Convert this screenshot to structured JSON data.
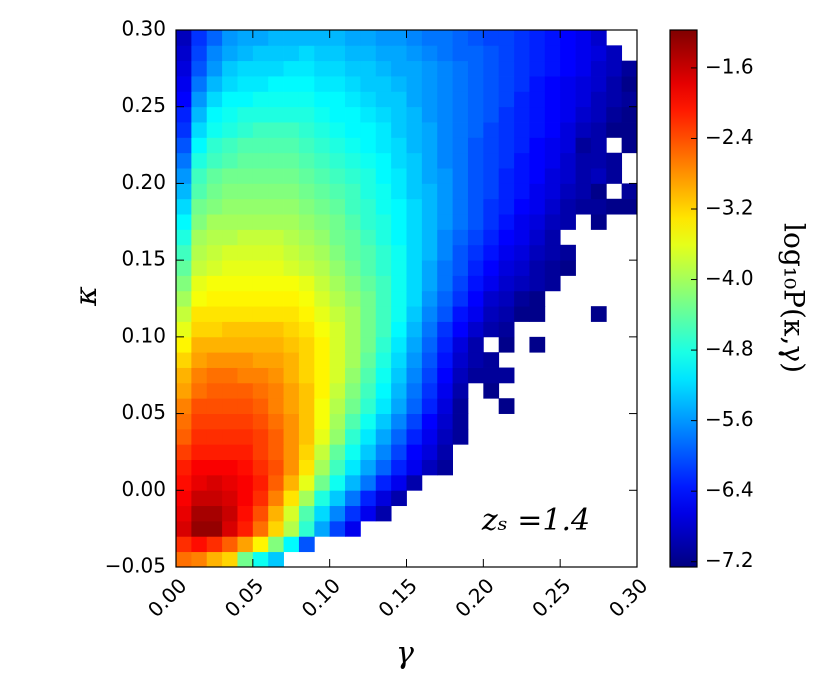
{
  "chart_data": {
    "type": "heatmap",
    "xlabel": "γ",
    "ylabel": "κ",
    "colorbar_label": "log₁₀P(κ,γ)",
    "annotation": "zₛ =1.4",
    "colormap": "jet",
    "xlim": [
      0,
      0.3
    ],
    "ylim": [
      -0.05,
      0.3
    ],
    "clim": [
      -7.26,
      -1.17
    ],
    "xticks": [
      {
        "value": 0,
        "label": "0.00"
      },
      {
        "value": 0.05,
        "label": "0.05"
      },
      {
        "value": 0.1,
        "label": "0.10"
      },
      {
        "value": 0.15,
        "label": "0.15"
      },
      {
        "value": 0.2,
        "label": "0.20"
      },
      {
        "value": 0.25,
        "label": "0.25"
      },
      {
        "value": 0.3,
        "label": "0.30"
      }
    ],
    "yticks": [
      {
        "value": -0.05,
        "label": "−0.05"
      },
      {
        "value": 0,
        "label": "0.00"
      },
      {
        "value": 0.05,
        "label": "0.05"
      },
      {
        "value": 0.1,
        "label": "0.10"
      },
      {
        "value": 0.15,
        "label": "0.15"
      },
      {
        "value": 0.2,
        "label": "0.20"
      },
      {
        "value": 0.25,
        "label": "0.25"
      },
      {
        "value": 0.3,
        "label": "0.30"
      }
    ],
    "cticks": [
      {
        "value": -1.6,
        "label": "−1.6"
      },
      {
        "value": -2.4,
        "label": "−2.4"
      },
      {
        "value": -3.2,
        "label": "−3.2"
      },
      {
        "value": -4.0,
        "label": "−4.0"
      },
      {
        "value": -4.8,
        "label": "−4.8"
      },
      {
        "value": -5.6,
        "label": "−5.6"
      },
      {
        "value": -6.4,
        "label": "−6.4"
      },
      {
        "value": -7.2,
        "label": "−7.2"
      }
    ],
    "x_edges": [
      0,
      0.01,
      0.02,
      0.03,
      0.04,
      0.05,
      0.06,
      0.07,
      0.08,
      0.09,
      0.1,
      0.11,
      0.12,
      0.13,
      0.14,
      0.15,
      0.16,
      0.17,
      0.18,
      0.19,
      0.2,
      0.21,
      0.22,
      0.23,
      0.24,
      0.25,
      0.26,
      0.27,
      0.28,
      0.29,
      0.3
    ],
    "y_edges": [
      -0.05,
      -0.04,
      -0.03,
      -0.02,
      -0.01,
      0,
      0.01,
      0.02,
      0.03,
      0.04,
      0.05,
      0.06,
      0.07,
      0.08,
      0.09,
      0.1,
      0.11,
      0.12,
      0.13,
      0.14,
      0.15,
      0.16,
      0.17,
      0.18,
      0.19,
      0.2,
      0.21,
      0.22,
      0.23,
      0.24,
      0.25,
      0.26,
      0.27,
      0.28,
      0.29,
      0.3
    ],
    "z": [
      [
        -2.6,
        -2.7,
        -3.0,
        -3.2,
        -4.3,
        -4.9,
        -5.3,
        null,
        null,
        null,
        null,
        null,
        null,
        null,
        null,
        null,
        null,
        null,
        null,
        null,
        null,
        null,
        null,
        null,
        null,
        null,
        null,
        null,
        null,
        null
      ],
      [
        -2.2,
        -2.0,
        -2.2,
        -2.5,
        -2.9,
        -3.4,
        -4.2,
        -5.0,
        -6.0,
        null,
        null,
        null,
        null,
        null,
        null,
        null,
        null,
        null,
        null,
        null,
        null,
        null,
        null,
        null,
        null,
        null,
        null,
        null,
        null,
        null
      ],
      [
        -1.7,
        -1.3,
        -1.3,
        -1.7,
        -2.1,
        -2.6,
        -3.2,
        -3.9,
        -4.7,
        -5.5,
        -6.1,
        -6.6,
        null,
        null,
        null,
        null,
        null,
        null,
        null,
        null,
        null,
        null,
        null,
        null,
        null,
        null,
        null,
        null,
        null,
        null
      ],
      [
        -1.8,
        -1.4,
        -1.4,
        -1.6,
        -2.0,
        -2.4,
        -3.0,
        -3.7,
        -4.5,
        -5.2,
        -5.7,
        -6.2,
        -6.6,
        -7.0,
        null,
        null,
        null,
        null,
        null,
        null,
        null,
        null,
        null,
        null,
        null,
        null,
        null,
        null,
        null,
        null
      ],
      [
        -1.9,
        -1.6,
        -1.6,
        -1.7,
        -1.9,
        -2.2,
        -2.7,
        -3.3,
        -4.0,
        -4.8,
        -5.3,
        -5.8,
        -6.3,
        -6.7,
        -7.0,
        null,
        null,
        null,
        null,
        null,
        null,
        null,
        null,
        null,
        null,
        null,
        null,
        null,
        null,
        null
      ],
      [
        -2.0,
        -1.8,
        -1.7,
        -1.8,
        -1.9,
        -2.1,
        -2.5,
        -3.0,
        -3.6,
        -4.3,
        -4.9,
        -5.4,
        -5.8,
        -6.3,
        -6.6,
        -7.0,
        null,
        null,
        null,
        null,
        null,
        null,
        null,
        null,
        null,
        null,
        null,
        null,
        null,
        null
      ],
      [
        -2.1,
        -1.9,
        -1.9,
        -1.9,
        -2.0,
        -2.2,
        -2.4,
        -2.8,
        -3.3,
        -4.0,
        -4.6,
        -5.1,
        -5.5,
        -5.9,
        -6.3,
        -6.6,
        -6.9,
        -7.1,
        null,
        null,
        null,
        null,
        null,
        null,
        null,
        null,
        null,
        null,
        null,
        null
      ],
      [
        -2.3,
        -2.1,
        -2.1,
        -2.1,
        -2.1,
        -2.3,
        -2.5,
        -2.8,
        -3.2,
        -3.8,
        -4.4,
        -4.9,
        -5.3,
        -5.7,
        -6.1,
        -6.5,
        -6.7,
        -7.0,
        null,
        null,
        null,
        null,
        null,
        null,
        null,
        null,
        null,
        null,
        null,
        null
      ],
      [
        -2.5,
        -2.2,
        -2.2,
        -2.2,
        -2.2,
        -2.3,
        -2.5,
        -2.8,
        -3.1,
        -3.6,
        -4.1,
        -4.7,
        -5.1,
        -5.5,
        -5.9,
        -6.3,
        -6.6,
        -6.9,
        -7.1,
        null,
        null,
        null,
        null,
        null,
        null,
        null,
        null,
        null,
        null,
        null
      ],
      [
        -2.6,
        -2.3,
        -2.3,
        -2.3,
        -2.3,
        -2.4,
        -2.6,
        -2.8,
        -3.1,
        -3.5,
        -4.0,
        -4.5,
        -4.9,
        -5.3,
        -5.7,
        -6.1,
        -6.5,
        -6.8,
        -7.1,
        null,
        null,
        null,
        null,
        null,
        null,
        null,
        null,
        null,
        null,
        null
      ],
      [
        -2.7,
        -2.4,
        -2.4,
        -2.4,
        -2.4,
        -2.5,
        -2.7,
        -2.9,
        -3.1,
        -3.5,
        -3.9,
        -4.3,
        -4.7,
        -5.1,
        -5.5,
        -5.9,
        -6.3,
        -6.7,
        -7.1,
        null,
        null,
        -7.2,
        null,
        null,
        null,
        null,
        null,
        null,
        null,
        null
      ],
      [
        -2.9,
        -2.6,
        -2.5,
        -2.5,
        -2.5,
        -2.6,
        -2.7,
        -2.9,
        -3.1,
        -3.4,
        -3.8,
        -4.2,
        -4.6,
        -5.0,
        -5.4,
        -5.8,
        -6.2,
        -6.6,
        -7.0,
        null,
        -7.2,
        null,
        null,
        null,
        null,
        null,
        null,
        null,
        null,
        null
      ],
      [
        -3.0,
        -2.7,
        -2.6,
        -2.6,
        -2.7,
        -2.7,
        -2.8,
        -3.0,
        -3.2,
        -3.4,
        -3.7,
        -4.1,
        -4.5,
        -4.9,
        -5.3,
        -5.7,
        -6.1,
        -6.5,
        -6.9,
        -7.1,
        -7.1,
        -7.1,
        null,
        null,
        null,
        null,
        null,
        null,
        null,
        null
      ],
      [
        -3.2,
        -2.9,
        -2.8,
        -2.8,
        -2.8,
        -2.9,
        -2.9,
        -3.0,
        -3.2,
        -3.4,
        -3.7,
        -4.0,
        -4.4,
        -4.8,
        -5.2,
        -5.6,
        -6.0,
        -6.4,
        -6.8,
        -7.0,
        -7.1,
        null,
        null,
        null,
        null,
        null,
        null,
        null,
        null,
        null
      ],
      [
        -3.4,
        -3.0,
        -3.0,
        -3.0,
        -3.0,
        -3.0,
        -3.0,
        -3.1,
        -3.2,
        -3.4,
        -3.7,
        -4.0,
        -4.3,
        -4.7,
        -5.1,
        -5.5,
        -5.9,
        -6.3,
        -6.7,
        -7.0,
        null,
        -7.2,
        null,
        -7.2,
        null,
        null,
        null,
        null,
        null,
        null
      ],
      [
        -3.6,
        -3.2,
        -3.2,
        -3.1,
        -3.1,
        -3.1,
        -3.1,
        -3.2,
        -3.3,
        -3.5,
        -3.7,
        -4.0,
        -4.3,
        -4.6,
        -5.0,
        -5.4,
        -5.8,
        -6.2,
        -6.5,
        -6.8,
        -7.0,
        -7.1,
        null,
        null,
        null,
        null,
        null,
        null,
        null,
        null
      ],
      [
        -3.8,
        -3.3,
        -3.3,
        -3.3,
        -3.3,
        -3.3,
        -3.3,
        -3.3,
        -3.4,
        -3.6,
        -3.8,
        -4.0,
        -4.3,
        -4.6,
        -4.9,
        -5.3,
        -5.7,
        -6.0,
        -6.4,
        -6.6,
        -6.9,
        -7.0,
        -7.2,
        -7.2,
        null,
        null,
        null,
        -7.2,
        null,
        null
      ],
      [
        -4.0,
        -3.5,
        -3.4,
        -3.4,
        -3.4,
        -3.4,
        -3.4,
        -3.4,
        -3.5,
        -3.7,
        -3.9,
        -4.1,
        -4.3,
        -4.6,
        -4.9,
        -5.2,
        -5.6,
        -5.9,
        -6.2,
        -6.5,
        -6.8,
        -6.9,
        -7.1,
        -7.2,
        null,
        null,
        null,
        null,
        null,
        null
      ],
      [
        -4.2,
        -3.6,
        -3.5,
        -3.5,
        -3.5,
        -3.5,
        -3.5,
        -3.5,
        -3.6,
        -3.8,
        -4.0,
        -4.2,
        -4.4,
        -4.6,
        -4.9,
        -5.2,
        -5.5,
        -5.8,
        -6.1,
        -6.4,
        -6.6,
        -6.8,
        -6.9,
        -7.0,
        -7.1,
        null,
        null,
        null,
        null,
        null
      ],
      [
        -4.4,
        -3.8,
        -3.7,
        -3.6,
        -3.6,
        -3.6,
        -3.6,
        -3.7,
        -3.8,
        -3.9,
        -4.1,
        -4.3,
        -4.5,
        -4.7,
        -4.9,
        -5.2,
        -5.5,
        -5.8,
        -6.0,
        -6.3,
        -6.5,
        -6.7,
        -6.8,
        -7.0,
        -7.1,
        -7.2,
        null,
        null,
        null,
        null
      ],
      [
        -4.6,
        -3.9,
        -3.8,
        -3.7,
        -3.7,
        -3.7,
        -3.7,
        -3.8,
        -3.9,
        -4.0,
        -4.2,
        -4.4,
        -4.5,
        -4.7,
        -4.9,
        -5.2,
        -5.4,
        -5.7,
        -6.0,
        -6.2,
        -6.4,
        -6.6,
        -6.7,
        -6.9,
        -7.0,
        -7.1,
        null,
        null,
        null,
        null
      ],
      [
        -4.8,
        -4.0,
        -3.9,
        -3.9,
        -3.8,
        -3.8,
        -3.8,
        -3.9,
        -4.0,
        -4.1,
        -4.3,
        -4.4,
        -4.6,
        -4.8,
        -5.0,
        -5.2,
        -5.4,
        -5.7,
        -5.9,
        -6.1,
        -6.3,
        -6.5,
        -6.6,
        -6.8,
        -7.0,
        null,
        null,
        null,
        null,
        null
      ],
      [
        -5.0,
        -4.2,
        -4.0,
        -4.0,
        -4.0,
        -4.0,
        -4.0,
        -4.0,
        -4.1,
        -4.2,
        -4.3,
        -4.5,
        -4.7,
        -4.8,
        -5.0,
        -5.2,
        -5.4,
        -5.6,
        -5.8,
        -6.0,
        -6.2,
        -6.4,
        -6.6,
        -6.7,
        -6.9,
        -7.0,
        null,
        -7.2,
        null,
        null
      ],
      [
        -5.2,
        -4.3,
        -4.2,
        -4.1,
        -4.1,
        -4.1,
        -4.1,
        -4.1,
        -4.2,
        -4.3,
        -4.4,
        -4.6,
        -4.7,
        -4.9,
        -5.0,
        -5.2,
        -5.4,
        -5.6,
        -5.8,
        -6.0,
        -6.2,
        -6.3,
        -6.5,
        -6.6,
        -6.8,
        -7.0,
        -7.1,
        -7.1,
        -7.2,
        -7.2
      ],
      [
        -5.4,
        -4.5,
        -4.3,
        -4.2,
        -4.2,
        -4.2,
        -4.2,
        -4.2,
        -4.3,
        -4.4,
        -4.5,
        -4.6,
        -4.8,
        -4.9,
        -5.1,
        -5.3,
        -5.4,
        -5.6,
        -5.8,
        -6.0,
        -6.1,
        -6.3,
        -6.4,
        -6.6,
        -6.7,
        -6.9,
        -7.0,
        -7.2,
        null,
        -7.1
      ],
      [
        -5.6,
        -4.6,
        -4.4,
        -4.3,
        -4.3,
        -4.3,
        -4.3,
        -4.3,
        -4.4,
        -4.5,
        -4.6,
        -4.7,
        -4.8,
        -5.0,
        -5.1,
        -5.3,
        -5.5,
        -5.6,
        -5.8,
        -6.0,
        -6.1,
        -6.3,
        -6.4,
        -6.5,
        -6.7,
        -6.8,
        -7.0,
        -6.9,
        -7.1,
        null
      ],
      [
        -5.8,
        -4.8,
        -4.6,
        -4.5,
        -4.4,
        -4.4,
        -4.4,
        -4.4,
        -4.5,
        -4.6,
        -4.7,
        -4.8,
        -4.9,
        -5.0,
        -5.2,
        -5.3,
        -5.5,
        -5.7,
        -5.8,
        -6.0,
        -6.1,
        -6.2,
        -6.4,
        -6.5,
        -6.6,
        -6.8,
        -7.0,
        -7.0,
        -7.1,
        null
      ],
      [
        -6.0,
        -5.0,
        -4.7,
        -4.6,
        -4.5,
        -4.5,
        -4.5,
        -4.5,
        -4.6,
        -4.7,
        -4.8,
        -4.9,
        -5.0,
        -5.1,
        -5.2,
        -5.4,
        -5.5,
        -5.7,
        -5.8,
        -6.0,
        -6.1,
        -6.2,
        -6.3,
        -6.5,
        -6.6,
        -6.7,
        -7.1,
        -7.0,
        null,
        -7.2
      ],
      [
        -6.2,
        -5.2,
        -4.9,
        -4.8,
        -4.7,
        -4.6,
        -4.6,
        -4.6,
        -4.7,
        -4.8,
        -4.9,
        -5.0,
        -5.0,
        -5.1,
        -5.3,
        -5.4,
        -5.5,
        -5.7,
        -5.8,
        -5.9,
        -6.1,
        -6.2,
        -6.3,
        -6.4,
        -6.5,
        -6.7,
        -6.9,
        -7.0,
        -7.2,
        -7.2
      ],
      [
        -6.3,
        -5.4,
        -5.0,
        -4.9,
        -4.8,
        -4.8,
        -4.8,
        -4.8,
        -4.8,
        -4.9,
        -5.0,
        -5.0,
        -5.1,
        -5.2,
        -5.3,
        -5.4,
        -5.6,
        -5.7,
        -5.8,
        -5.9,
        -6.0,
        -6.2,
        -6.3,
        -6.4,
        -6.5,
        -6.6,
        -6.8,
        -6.9,
        -7.1,
        -7.2
      ],
      [
        -6.5,
        -5.6,
        -5.2,
        -5.0,
        -5.0,
        -4.9,
        -4.9,
        -4.9,
        -4.9,
        -5.0,
        -5.0,
        -5.1,
        -5.2,
        -5.3,
        -5.3,
        -5.5,
        -5.6,
        -5.7,
        -5.8,
        -5.9,
        -6.0,
        -6.1,
        -6.3,
        -6.4,
        -6.5,
        -6.6,
        -6.7,
        -6.9,
        -7.0,
        -7.1
      ],
      [
        -6.6,
        -5.8,
        -5.4,
        -5.2,
        -5.1,
        -5.1,
        -5.0,
        -5.0,
        -5.0,
        -5.1,
        -5.1,
        -5.2,
        -5.3,
        -5.3,
        -5.4,
        -5.5,
        -5.6,
        -5.7,
        -5.8,
        -5.9,
        -6.0,
        -6.1,
        -6.2,
        -6.4,
        -6.5,
        -6.6,
        -6.7,
        -6.8,
        -7.0,
        -7.2
      ],
      [
        -6.7,
        -6.0,
        -5.6,
        -5.3,
        -5.2,
        -5.2,
        -5.2,
        -5.1,
        -5.1,
        -5.2,
        -5.2,
        -5.3,
        -5.3,
        -5.4,
        -5.5,
        -5.5,
        -5.6,
        -5.7,
        -5.8,
        -5.9,
        -6.0,
        -6.1,
        -6.2,
        -6.3,
        -6.4,
        -6.5,
        -6.6,
        -6.8,
        -6.9,
        -7.1
      ],
      [
        -6.8,
        -6.1,
        -5.7,
        -5.5,
        -5.4,
        -5.3,
        -5.3,
        -5.3,
        -5.2,
        -5.3,
        -5.3,
        -5.4,
        -5.4,
        -5.5,
        -5.5,
        -5.6,
        -5.7,
        -5.8,
        -5.9,
        -5.9,
        -6.0,
        -6.1,
        -6.2,
        -6.3,
        -6.4,
        -6.5,
        -6.6,
        -6.7,
        -6.9,
        null
      ],
      [
        -6.9,
        -6.2,
        -5.9,
        -5.6,
        -5.5,
        -5.5,
        -5.4,
        -5.4,
        -5.4,
        -5.4,
        -5.4,
        -5.5,
        -5.5,
        -5.6,
        -5.6,
        -5.7,
        -5.8,
        -5.8,
        -5.9,
        -6.0,
        -6.1,
        -6.1,
        -6.2,
        -6.3,
        -6.4,
        -6.5,
        -6.6,
        -6.8,
        null,
        null
      ]
    ]
  }
}
